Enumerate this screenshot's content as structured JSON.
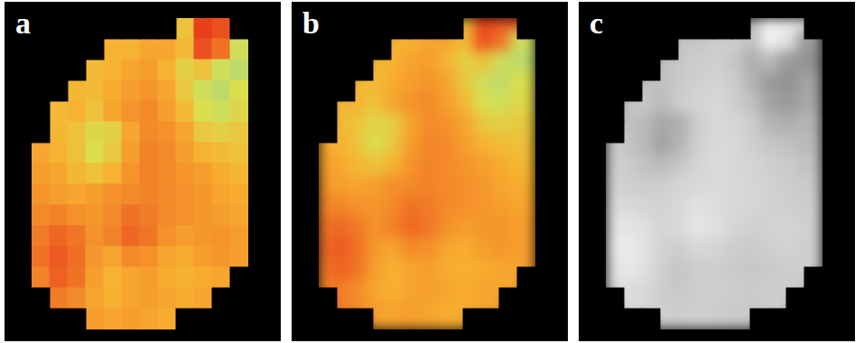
{
  "chart_data": [
    {
      "type": "heatmap",
      "title": "a",
      "tick_labels": false,
      "colors": [
        "#70c8b8",
        "#d8e050",
        "#f8b030",
        "#e8401c"
      ],
      "clim": [
        0,
        1
      ],
      "cells": [
        [
          null,
          null,
          null,
          null,
          null,
          null,
          null,
          null,
          0.55,
          1.0,
          0.95,
          null
        ],
        [
          null,
          null,
          null,
          null,
          0.65,
          0.65,
          0.7,
          0.7,
          0.6,
          0.95,
          0.85,
          0.3
        ],
        [
          null,
          null,
          null,
          0.6,
          0.65,
          0.7,
          0.72,
          0.65,
          0.45,
          0.55,
          0.3,
          0.25
        ],
        [
          null,
          null,
          0.62,
          0.6,
          0.68,
          0.72,
          0.75,
          0.7,
          0.5,
          0.3,
          0.25,
          0.35
        ],
        [
          null,
          0.6,
          0.65,
          0.55,
          0.7,
          0.75,
          0.78,
          0.72,
          0.6,
          0.35,
          0.3,
          0.4
        ],
        [
          null,
          0.62,
          0.55,
          0.4,
          0.45,
          0.7,
          0.78,
          0.76,
          0.7,
          0.5,
          0.45,
          0.5
        ],
        [
          0.7,
          0.65,
          0.55,
          0.35,
          0.5,
          0.72,
          0.8,
          0.78,
          0.72,
          0.65,
          0.6,
          0.55
        ],
        [
          0.72,
          0.7,
          0.62,
          0.55,
          0.65,
          0.75,
          0.8,
          0.78,
          0.75,
          0.72,
          0.68,
          0.62
        ],
        [
          0.75,
          0.72,
          0.7,
          0.72,
          0.76,
          0.78,
          0.8,
          0.78,
          0.76,
          0.74,
          0.7,
          0.68
        ],
        [
          0.78,
          0.8,
          0.76,
          0.74,
          0.78,
          0.85,
          0.82,
          0.78,
          0.76,
          0.74,
          0.72,
          0.7
        ],
        [
          0.82,
          0.88,
          0.84,
          0.76,
          0.8,
          0.88,
          0.84,
          0.76,
          0.72,
          0.74,
          0.75,
          0.72
        ],
        [
          0.85,
          0.92,
          0.86,
          0.74,
          0.7,
          0.78,
          0.76,
          0.7,
          0.68,
          0.72,
          0.74,
          0.72
        ],
        [
          0.8,
          0.9,
          0.85,
          0.72,
          0.65,
          0.7,
          0.72,
          0.68,
          0.66,
          0.68,
          0.7,
          null
        ],
        [
          null,
          0.82,
          0.78,
          0.7,
          0.66,
          0.7,
          0.72,
          0.7,
          0.68,
          0.7,
          null,
          null
        ],
        [
          null,
          null,
          null,
          0.72,
          0.7,
          0.72,
          0.7,
          0.68,
          null,
          null,
          null,
          null
        ]
      ]
    },
    {
      "type": "heatmap",
      "title": "b",
      "tick_labels": false,
      "colors": [
        "#70c8b8",
        "#d8e050",
        "#f8b030",
        "#e8401c"
      ],
      "clim": [
        0,
        1
      ],
      "cells": [
        [
          null,
          null,
          null,
          null,
          null,
          null,
          null,
          null,
          0.55,
          1.0,
          0.95,
          null
        ],
        [
          null,
          null,
          null,
          null,
          0.65,
          0.65,
          0.7,
          0.7,
          0.6,
          0.95,
          0.85,
          0.3
        ],
        [
          null,
          null,
          null,
          0.6,
          0.65,
          0.7,
          0.72,
          0.65,
          0.45,
          0.55,
          0.3,
          0.25
        ],
        [
          null,
          null,
          0.62,
          0.6,
          0.68,
          0.72,
          0.75,
          0.7,
          0.5,
          0.3,
          0.25,
          0.35
        ],
        [
          null,
          0.6,
          0.65,
          0.55,
          0.7,
          0.75,
          0.78,
          0.72,
          0.6,
          0.35,
          0.3,
          0.4
        ],
        [
          null,
          0.62,
          0.55,
          0.4,
          0.45,
          0.7,
          0.78,
          0.76,
          0.7,
          0.5,
          0.45,
          0.5
        ],
        [
          0.7,
          0.65,
          0.55,
          0.35,
          0.5,
          0.72,
          0.8,
          0.78,
          0.72,
          0.65,
          0.6,
          0.55
        ],
        [
          0.72,
          0.7,
          0.62,
          0.55,
          0.65,
          0.75,
          0.8,
          0.78,
          0.75,
          0.72,
          0.68,
          0.62
        ],
        [
          0.75,
          0.72,
          0.7,
          0.72,
          0.76,
          0.78,
          0.8,
          0.78,
          0.76,
          0.74,
          0.7,
          0.68
        ],
        [
          0.78,
          0.8,
          0.76,
          0.74,
          0.78,
          0.85,
          0.82,
          0.78,
          0.76,
          0.74,
          0.72,
          0.7
        ],
        [
          0.82,
          0.88,
          0.84,
          0.76,
          0.8,
          0.88,
          0.84,
          0.76,
          0.72,
          0.74,
          0.75,
          0.72
        ],
        [
          0.85,
          0.92,
          0.86,
          0.74,
          0.7,
          0.78,
          0.76,
          0.7,
          0.68,
          0.72,
          0.74,
          0.72
        ],
        [
          0.8,
          0.9,
          0.85,
          0.72,
          0.65,
          0.7,
          0.72,
          0.68,
          0.66,
          0.68,
          0.7,
          null
        ],
        [
          null,
          0.82,
          0.78,
          0.7,
          0.66,
          0.7,
          0.72,
          0.7,
          0.68,
          0.7,
          null,
          null
        ],
        [
          null,
          null,
          null,
          0.72,
          0.7,
          0.72,
          0.7,
          0.68,
          null,
          null,
          null,
          null
        ]
      ]
    },
    {
      "type": "heatmap",
      "title": "c",
      "tick_labels": false,
      "colors": [
        "#666666",
        "#a0a0a0",
        "#c8c8c8",
        "#f6f6f6"
      ],
      "clim": [
        0,
        1
      ],
      "cells": [
        [
          null,
          null,
          null,
          null,
          null,
          null,
          null,
          null,
          0.55,
          1.0,
          0.95,
          null
        ],
        [
          null,
          null,
          null,
          null,
          0.65,
          0.65,
          0.7,
          0.7,
          0.6,
          0.95,
          0.85,
          0.3
        ],
        [
          null,
          null,
          null,
          0.6,
          0.65,
          0.7,
          0.72,
          0.65,
          0.45,
          0.55,
          0.3,
          0.25
        ],
        [
          null,
          null,
          0.62,
          0.6,
          0.68,
          0.72,
          0.75,
          0.7,
          0.5,
          0.3,
          0.25,
          0.35
        ],
        [
          null,
          0.6,
          0.65,
          0.55,
          0.7,
          0.75,
          0.78,
          0.72,
          0.6,
          0.35,
          0.3,
          0.4
        ],
        [
          null,
          0.62,
          0.55,
          0.4,
          0.45,
          0.7,
          0.78,
          0.76,
          0.7,
          0.5,
          0.45,
          0.5
        ],
        [
          0.7,
          0.65,
          0.55,
          0.35,
          0.5,
          0.72,
          0.8,
          0.78,
          0.72,
          0.65,
          0.6,
          0.55
        ],
        [
          0.72,
          0.7,
          0.62,
          0.55,
          0.65,
          0.75,
          0.8,
          0.78,
          0.75,
          0.72,
          0.68,
          0.62
        ],
        [
          0.75,
          0.72,
          0.7,
          0.72,
          0.76,
          0.78,
          0.8,
          0.78,
          0.76,
          0.74,
          0.7,
          0.68
        ],
        [
          0.78,
          0.8,
          0.76,
          0.74,
          0.78,
          0.85,
          0.82,
          0.78,
          0.76,
          0.74,
          0.72,
          0.7
        ],
        [
          0.82,
          0.88,
          0.84,
          0.76,
          0.8,
          0.88,
          0.84,
          0.76,
          0.72,
          0.74,
          0.75,
          0.72
        ],
        [
          0.85,
          0.92,
          0.86,
          0.74,
          0.7,
          0.78,
          0.76,
          0.7,
          0.68,
          0.72,
          0.74,
          0.72
        ],
        [
          0.8,
          0.9,
          0.85,
          0.72,
          0.65,
          0.7,
          0.72,
          0.68,
          0.66,
          0.68,
          0.7,
          null
        ],
        [
          null,
          0.82,
          0.78,
          0.7,
          0.66,
          0.7,
          0.72,
          0.7,
          0.68,
          0.7,
          null,
          null
        ],
        [
          null,
          null,
          null,
          0.72,
          0.7,
          0.72,
          0.7,
          0.68,
          null,
          null,
          null,
          null
        ]
      ]
    }
  ]
}
